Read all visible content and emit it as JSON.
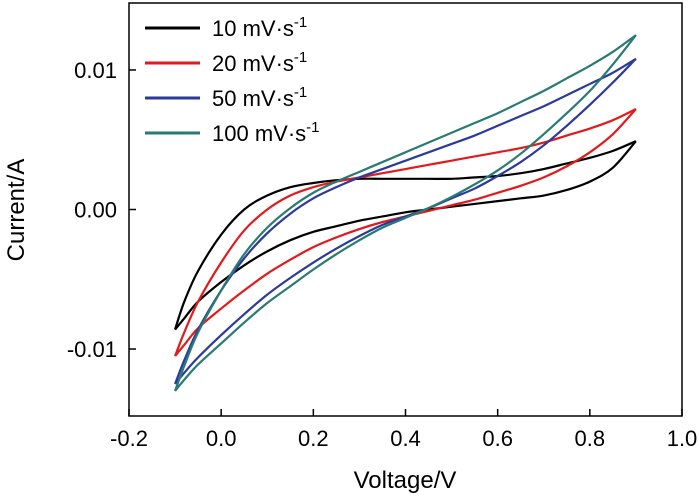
{
  "chart_data": {
    "type": "line",
    "title": "",
    "xlabel": "Voltage/V",
    "ylabel": "Current/A",
    "xlim": [
      -0.2,
      1.0
    ],
    "ylim": [
      -0.0148,
      0.0148
    ],
    "xticks": [
      -0.2,
      0.0,
      0.2,
      0.4,
      0.6,
      0.8,
      1.0
    ],
    "xtick_labels": [
      "-0.2",
      "0.0",
      "0.2",
      "0.4",
      "0.6",
      "0.8",
      "1.0"
    ],
    "yticks": [
      -0.01,
      0.0,
      0.01
    ],
    "ytick_labels": [
      "-0.01",
      "0.00",
      "0.01"
    ],
    "legend_position": "top-left",
    "series": [
      {
        "name": "10 mV·s",
        "superscript": "-1",
        "color": "#000000",
        "upper": [
          [
            -0.1,
            -0.0086
          ],
          [
            -0.08,
            -0.0066
          ],
          [
            -0.05,
            -0.0044
          ],
          [
            0.0,
            -0.0018
          ],
          [
            0.05,
            0.0
          ],
          [
            0.1,
            0.001
          ],
          [
            0.15,
            0.0016
          ],
          [
            0.2,
            0.0019
          ],
          [
            0.25,
            0.0021
          ],
          [
            0.3,
            0.0022
          ],
          [
            0.35,
            0.0022
          ],
          [
            0.4,
            0.0022
          ],
          [
            0.45,
            0.0022
          ],
          [
            0.5,
            0.0022
          ],
          [
            0.55,
            0.0023
          ],
          [
            0.6,
            0.0024
          ],
          [
            0.65,
            0.0026
          ],
          [
            0.7,
            0.0029
          ],
          [
            0.75,
            0.0033
          ],
          [
            0.8,
            0.0037
          ],
          [
            0.85,
            0.0042
          ],
          [
            0.9,
            0.0049
          ]
        ],
        "lower": [
          [
            -0.1,
            -0.0086
          ],
          [
            -0.08,
            -0.0078
          ],
          [
            -0.05,
            -0.0066
          ],
          [
            0.0,
            -0.0052
          ],
          [
            0.05,
            -0.004
          ],
          [
            0.1,
            -0.003
          ],
          [
            0.15,
            -0.0022
          ],
          [
            0.2,
            -0.0016
          ],
          [
            0.25,
            -0.0012
          ],
          [
            0.3,
            -0.0008
          ],
          [
            0.35,
            -0.0005
          ],
          [
            0.4,
            -0.0002
          ],
          [
            0.45,
            0.0
          ],
          [
            0.5,
            0.0002
          ],
          [
            0.55,
            0.0004
          ],
          [
            0.6,
            0.0006
          ],
          [
            0.65,
            0.0008
          ],
          [
            0.7,
            0.001
          ],
          [
            0.75,
            0.0014
          ],
          [
            0.8,
            0.002
          ],
          [
            0.85,
            0.003
          ],
          [
            0.9,
            0.0049
          ]
        ]
      },
      {
        "name": "20 mV·s",
        "superscript": "-1",
        "color": "#e31a1c",
        "upper": [
          [
            -0.1,
            -0.0105
          ],
          [
            -0.08,
            -0.0088
          ],
          [
            -0.05,
            -0.0066
          ],
          [
            0.0,
            -0.0038
          ],
          [
            0.05,
            -0.0015
          ],
          [
            0.1,
            0.0
          ],
          [
            0.15,
            0.001
          ],
          [
            0.2,
            0.0016
          ],
          [
            0.25,
            0.002
          ],
          [
            0.3,
            0.0023
          ],
          [
            0.35,
            0.0026
          ],
          [
            0.4,
            0.0029
          ],
          [
            0.45,
            0.0032
          ],
          [
            0.5,
            0.0035
          ],
          [
            0.55,
            0.0038
          ],
          [
            0.6,
            0.0041
          ],
          [
            0.65,
            0.0044
          ],
          [
            0.7,
            0.0048
          ],
          [
            0.75,
            0.0053
          ],
          [
            0.8,
            0.0058
          ],
          [
            0.85,
            0.0064
          ],
          [
            0.9,
            0.0072
          ]
        ],
        "lower": [
          [
            -0.1,
            -0.0105
          ],
          [
            -0.08,
            -0.0097
          ],
          [
            -0.05,
            -0.0085
          ],
          [
            0.0,
            -0.0071
          ],
          [
            0.05,
            -0.0058
          ],
          [
            0.1,
            -0.0046
          ],
          [
            0.15,
            -0.0036
          ],
          [
            0.2,
            -0.0027
          ],
          [
            0.25,
            -0.002
          ],
          [
            0.3,
            -0.0014
          ],
          [
            0.35,
            -0.0009
          ],
          [
            0.4,
            -0.0005
          ],
          [
            0.45,
            -0.0001
          ],
          [
            0.5,
            0.0003
          ],
          [
            0.55,
            0.0007
          ],
          [
            0.6,
            0.0012
          ],
          [
            0.65,
            0.0017
          ],
          [
            0.7,
            0.0023
          ],
          [
            0.75,
            0.0031
          ],
          [
            0.8,
            0.0041
          ],
          [
            0.85,
            0.0054
          ],
          [
            0.9,
            0.0072
          ]
        ]
      },
      {
        "name": "50 mV·s",
        "superscript": "-1",
        "color": "#2b3a9b",
        "upper": [
          [
            -0.1,
            -0.0125
          ],
          [
            -0.08,
            -0.0108
          ],
          [
            -0.05,
            -0.0086
          ],
          [
            0.0,
            -0.0058
          ],
          [
            0.05,
            -0.0035
          ],
          [
            0.1,
            -0.0017
          ],
          [
            0.15,
            -0.0003
          ],
          [
            0.2,
            0.0008
          ],
          [
            0.25,
            0.0016
          ],
          [
            0.3,
            0.0023
          ],
          [
            0.35,
            0.0029
          ],
          [
            0.4,
            0.0035
          ],
          [
            0.45,
            0.0041
          ],
          [
            0.5,
            0.0047
          ],
          [
            0.55,
            0.0053
          ],
          [
            0.6,
            0.006
          ],
          [
            0.65,
            0.0067
          ],
          [
            0.7,
            0.0074
          ],
          [
            0.75,
            0.0082
          ],
          [
            0.8,
            0.009
          ],
          [
            0.85,
            0.0098
          ],
          [
            0.9,
            0.0108
          ]
        ],
        "lower": [
          [
            -0.1,
            -0.0125
          ],
          [
            -0.08,
            -0.0117
          ],
          [
            -0.05,
            -0.0106
          ],
          [
            0.0,
            -0.009
          ],
          [
            0.05,
            -0.0075
          ],
          [
            0.1,
            -0.0061
          ],
          [
            0.15,
            -0.0049
          ],
          [
            0.2,
            -0.0038
          ],
          [
            0.25,
            -0.0028
          ],
          [
            0.3,
            -0.0019
          ],
          [
            0.35,
            -0.0011
          ],
          [
            0.4,
            -0.0005
          ],
          [
            0.45,
            0.0001
          ],
          [
            0.5,
            0.0008
          ],
          [
            0.55,
            0.0015
          ],
          [
            0.6,
            0.0024
          ],
          [
            0.65,
            0.0034
          ],
          [
            0.7,
            0.0046
          ],
          [
            0.75,
            0.006
          ],
          [
            0.8,
            0.0075
          ],
          [
            0.85,
            0.0091
          ],
          [
            0.9,
            0.0108
          ]
        ]
      },
      {
        "name": "100 mV·s",
        "superscript": "-1",
        "color": "#2a7a74",
        "upper": [
          [
            -0.1,
            -0.013
          ],
          [
            -0.08,
            -0.0112
          ],
          [
            -0.05,
            -0.0088
          ],
          [
            0.0,
            -0.0058
          ],
          [
            0.05,
            -0.0032
          ],
          [
            0.1,
            -0.0013
          ],
          [
            0.15,
            0.0001
          ],
          [
            0.2,
            0.0012
          ],
          [
            0.25,
            0.002
          ],
          [
            0.3,
            0.0027
          ],
          [
            0.35,
            0.0034
          ],
          [
            0.4,
            0.0041
          ],
          [
            0.45,
            0.0048
          ],
          [
            0.5,
            0.0055
          ],
          [
            0.55,
            0.0062
          ],
          [
            0.6,
            0.0069
          ],
          [
            0.65,
            0.0077
          ],
          [
            0.7,
            0.0085
          ],
          [
            0.75,
            0.0094
          ],
          [
            0.8,
            0.0103
          ],
          [
            0.85,
            0.0113
          ],
          [
            0.9,
            0.0125
          ]
        ],
        "lower": [
          [
            -0.1,
            -0.013
          ],
          [
            -0.08,
            -0.0122
          ],
          [
            -0.05,
            -0.0111
          ],
          [
            0.0,
            -0.0096
          ],
          [
            0.05,
            -0.0081
          ],
          [
            0.1,
            -0.0067
          ],
          [
            0.15,
            -0.0055
          ],
          [
            0.2,
            -0.0043
          ],
          [
            0.25,
            -0.0032
          ],
          [
            0.3,
            -0.0022
          ],
          [
            0.35,
            -0.0013
          ],
          [
            0.4,
            -0.0006
          ],
          [
            0.45,
            0.0001
          ],
          [
            0.5,
            0.0009
          ],
          [
            0.55,
            0.0018
          ],
          [
            0.6,
            0.0028
          ],
          [
            0.65,
            0.004
          ],
          [
            0.7,
            0.0054
          ],
          [
            0.75,
            0.0069
          ],
          [
            0.8,
            0.0085
          ],
          [
            0.85,
            0.0104
          ],
          [
            0.9,
            0.0125
          ]
        ]
      }
    ]
  }
}
